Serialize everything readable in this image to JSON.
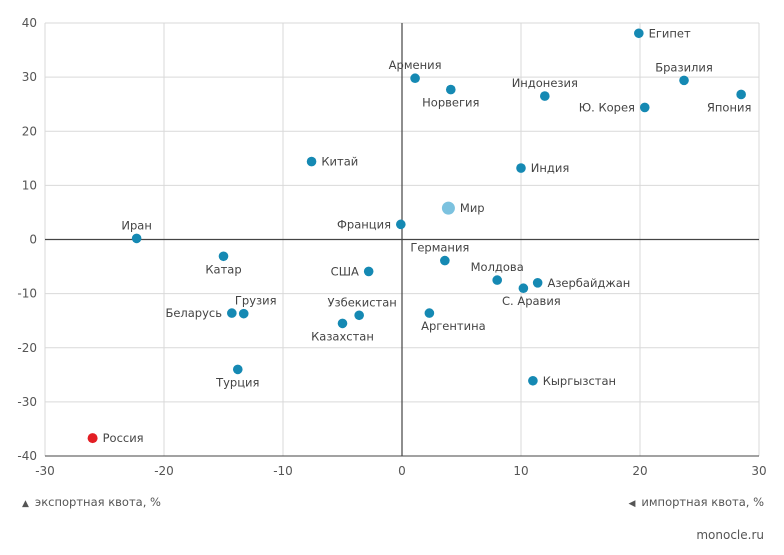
{
  "chart_data": {
    "type": "scatter",
    "x": {
      "min": -30,
      "max": 30,
      "ticks": [
        -30,
        -20,
        -10,
        0,
        10,
        20,
        30
      ]
    },
    "y": {
      "min": -40,
      "max": 40,
      "ticks": [
        -40,
        -30,
        -20,
        -10,
        0,
        10,
        20,
        30,
        40
      ]
    },
    "grid": true,
    "xlabel": "экспортная квота, %",
    "ylabel": "импортная квота, %",
    "colors": {
      "point": "#1589b3",
      "world": "#7cc2df",
      "russia": "#e31e24",
      "grid": "#d9d9d9",
      "axis": "#444444"
    },
    "points": [
      {
        "name": "Египет",
        "x": 19.9,
        "y": 38.1
      },
      {
        "name": "Армения",
        "x": 1.1,
        "y": 29.8
      },
      {
        "name": "Бразилия",
        "x": 23.7,
        "y": 29.4
      },
      {
        "name": "Норвегия",
        "x": 4.1,
        "y": 27.7
      },
      {
        "name": "Индонезия",
        "x": 12.0,
        "y": 26.5
      },
      {
        "name": "Япония",
        "x": 28.5,
        "y": 26.8
      },
      {
        "name": "Ю. Корея",
        "x": 20.4,
        "y": 24.4
      },
      {
        "name": "Китай",
        "x": -7.6,
        "y": 14.4
      },
      {
        "name": "Индия",
        "x": 10.0,
        "y": 13.2
      },
      {
        "name": "Мир",
        "x": 3.9,
        "y": 5.8,
        "kind": "world"
      },
      {
        "name": "Франция",
        "x": -0.1,
        "y": 2.8
      },
      {
        "name": "Иран",
        "x": -22.3,
        "y": 0.2
      },
      {
        "name": "Катар",
        "x": -15.0,
        "y": -3.1
      },
      {
        "name": "Германия",
        "x": 3.6,
        "y": -3.9
      },
      {
        "name": "США",
        "x": -2.8,
        "y": -5.9
      },
      {
        "name": "Молдова",
        "x": 8.0,
        "y": -7.5
      },
      {
        "name": "Азербайджан",
        "x": 11.4,
        "y": -8.0
      },
      {
        "name": "С. Аравия",
        "x": 10.2,
        "y": -9.0
      },
      {
        "name": "Беларусь",
        "x": -14.3,
        "y": -13.6
      },
      {
        "name": "Грузия",
        "x": -13.3,
        "y": -13.7
      },
      {
        "name": "Узбекистан",
        "x": -3.6,
        "y": -14.0
      },
      {
        "name": "Аргентина",
        "x": 2.3,
        "y": -13.6
      },
      {
        "name": "Казахстан",
        "x": -5.0,
        "y": -15.5
      },
      {
        "name": "Турция",
        "x": -13.8,
        "y": -24.0
      },
      {
        "name": "Кыргызстан",
        "x": 11.0,
        "y": -26.1
      },
      {
        "name": "Россия",
        "x": -26.0,
        "y": -36.7,
        "kind": "russia"
      }
    ]
  },
  "captions": {
    "x_axis": "экспортная квота, %",
    "y_axis": "импортная квота, %",
    "source": "monocle.ru"
  }
}
